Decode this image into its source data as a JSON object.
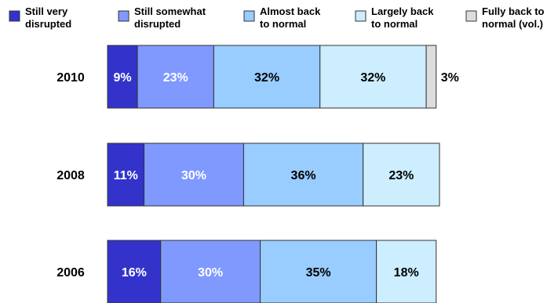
{
  "chart_data": {
    "type": "bar",
    "orientation": "horizontal",
    "stacked": true,
    "categories": [
      "2010",
      "2008",
      "2006"
    ],
    "series": [
      {
        "name": "Still very disrupted",
        "values": [
          9,
          11,
          16
        ],
        "color": "#3333cc",
        "label_color": "#ffffff"
      },
      {
        "name": "Still somewhat disrupted",
        "values": [
          23,
          30,
          30
        ],
        "color": "#7f99ff",
        "label_color": "#ffffff"
      },
      {
        "name": "Almost back to normal",
        "values": [
          32,
          36,
          35
        ],
        "color": "#99ccff",
        "label_color": "#000000"
      },
      {
        "name": "Largely back to normal",
        "values": [
          32,
          23,
          18
        ],
        "color": "#cceeff",
        "label_color": "#000000"
      },
      {
        "name": "Fully back to normal (vol.)",
        "values": [
          3,
          null,
          null
        ],
        "color": "#dddddd",
        "label_color": "#000000"
      }
    ],
    "value_suffix": "%",
    "legend_placement": "top",
    "grid": false
  }
}
